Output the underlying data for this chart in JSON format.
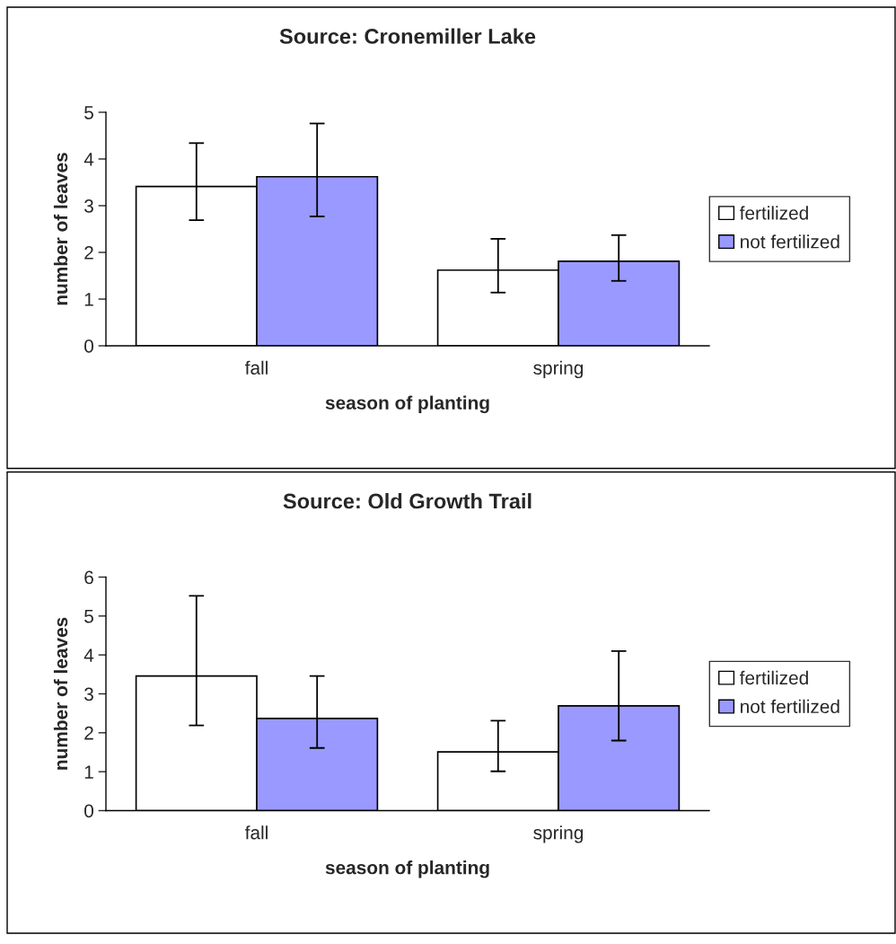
{
  "chart_data": [
    {
      "type": "bar",
      "title": "Source: Cronemiller Lake",
      "xlabel": "season of planting",
      "ylabel": "number of leaves",
      "categories": [
        "fall",
        "spring"
      ],
      "ylim": [
        0,
        5
      ],
      "yticks": [
        0,
        1,
        2,
        3,
        4,
        5
      ],
      "grid": false,
      "legend": "right",
      "series": [
        {
          "name": "fertilized",
          "color": "#ffffff",
          "values": [
            3.41,
            1.62
          ],
          "errors": [
            [
              2.69,
              4.34
            ],
            [
              1.14,
              2.29
            ]
          ]
        },
        {
          "name": "not fertilized",
          "color": "#9999ff",
          "values": [
            3.62,
            1.81
          ],
          "errors": [
            [
              2.77,
              4.76
            ],
            [
              1.39,
              2.37
            ]
          ]
        }
      ]
    },
    {
      "type": "bar",
      "title": "Source: Old Growth Trail",
      "xlabel": "season of planting",
      "ylabel": "number of leaves",
      "categories": [
        "fall",
        "spring"
      ],
      "ylim": [
        0,
        6
      ],
      "yticks": [
        0,
        1,
        2,
        3,
        4,
        5,
        6
      ],
      "grid": false,
      "legend": "right",
      "series": [
        {
          "name": "fertilized",
          "color": "#ffffff",
          "values": [
            3.46,
            1.51
          ],
          "errors": [
            [
              2.19,
              5.52
            ],
            [
              1.01,
              2.31
            ]
          ]
        },
        {
          "name": "not fertilized",
          "color": "#9999ff",
          "values": [
            2.37,
            2.69
          ],
          "errors": [
            [
              1.61,
              3.46
            ],
            [
              1.8,
              4.1
            ]
          ]
        }
      ]
    }
  ]
}
